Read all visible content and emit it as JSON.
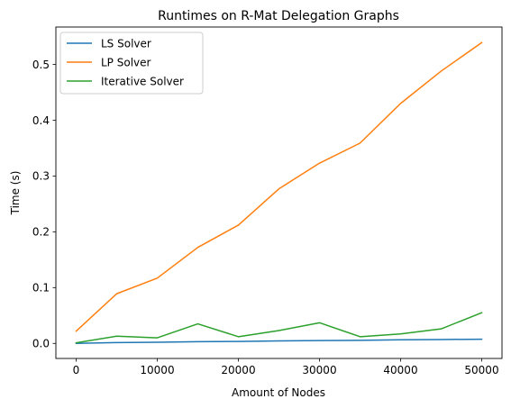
{
  "chart_data": {
    "type": "line",
    "title": "Runtimes on R-Mat Delegation Graphs",
    "xlabel": "Amount of Nodes",
    "ylabel": "Time (s)",
    "x": [
      0,
      5000,
      10000,
      15000,
      20000,
      25000,
      30000,
      35000,
      40000,
      45000,
      50000
    ],
    "xlim": [
      -2500,
      52500
    ],
    "ylim": [
      -0.027,
      0.567
    ],
    "xticks": [
      0,
      10000,
      20000,
      30000,
      40000,
      50000
    ],
    "yticks": [
      0.0,
      0.1,
      0.2,
      0.3,
      0.4,
      0.5
    ],
    "xtick_labels": [
      "0",
      "10000",
      "20000",
      "30000",
      "40000",
      "50000"
    ],
    "ytick_labels": [
      "0.0",
      "0.1",
      "0.2",
      "0.3",
      "0.4",
      "0.5"
    ],
    "legend_position": "top-left",
    "grid": false,
    "series": [
      {
        "name": "LS Solver",
        "color": "#1f77b4",
        "values": [
          0.0,
          0.0015,
          0.002,
          0.003,
          0.0035,
          0.0045,
          0.005,
          0.0055,
          0.0065,
          0.007,
          0.0075
        ]
      },
      {
        "name": "LP Solver",
        "color": "#ff7f0e",
        "values": [
          0.022,
          0.089,
          0.117,
          0.172,
          0.212,
          0.277,
          0.323,
          0.359,
          0.43,
          0.488,
          0.539
        ]
      },
      {
        "name": "Iterative Solver",
        "color": "#2ca02c",
        "values": [
          0.001,
          0.013,
          0.01,
          0.035,
          0.012,
          0.023,
          0.037,
          0.012,
          0.017,
          0.026,
          0.055
        ]
      }
    ]
  }
}
